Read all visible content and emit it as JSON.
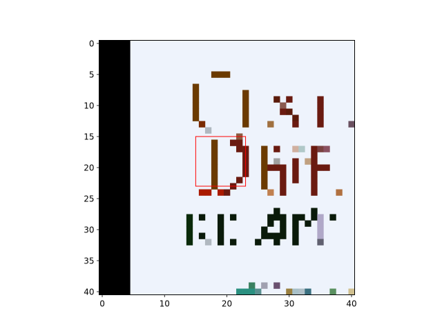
{
  "chart_data": {
    "type": "heatmap",
    "title": "",
    "xlabel": "",
    "ylabel": "",
    "xlim": [
      -0.5,
      40.5
    ],
    "ylim": [
      40.5,
      -0.5
    ],
    "x_ticks": [
      0,
      10,
      20,
      30,
      40
    ],
    "y_ticks": [
      0,
      5,
      10,
      15,
      20,
      25,
      30,
      35,
      40
    ],
    "grid": false,
    "legend": "none",
    "image_size": [
      41,
      41
    ],
    "background_color": "#eef3fc",
    "pixels": [
      {
        "x": 18,
        "y": 5,
        "c": "#6b3a00"
      },
      {
        "x": 19,
        "y": 5,
        "c": "#6b3a00"
      },
      {
        "x": 20,
        "y": 5,
        "c": "#6b3a00"
      },
      {
        "x": 15,
        "y": 7,
        "c": "#6b3a00"
      },
      {
        "x": 15,
        "y": 8,
        "c": "#6b3a00"
      },
      {
        "x": 23,
        "y": 8,
        "c": "#6b3a00"
      },
      {
        "x": 15,
        "y": 9,
        "c": "#6b3a00"
      },
      {
        "x": 23,
        "y": 9,
        "c": "#6b3a00"
      },
      {
        "x": 28,
        "y": 9,
        "c": "#5a1a0a"
      },
      {
        "x": 30,
        "y": 9,
        "c": "#6a1a10"
      },
      {
        "x": 35,
        "y": 9,
        "c": "#6a1a10"
      },
      {
        "x": 15,
        "y": 10,
        "c": "#6b3a00"
      },
      {
        "x": 23,
        "y": 10,
        "c": "#6b3a00"
      },
      {
        "x": 29,
        "y": 10,
        "c": "#8a5a50"
      },
      {
        "x": 35,
        "y": 10,
        "c": "#6a1a10"
      },
      {
        "x": 15,
        "y": 11,
        "c": "#6b3a00"
      },
      {
        "x": 23,
        "y": 11,
        "c": "#6b3a00"
      },
      {
        "x": 29,
        "y": 11,
        "c": "#6a1a10"
      },
      {
        "x": 30,
        "y": 11,
        "c": "#5a1a0a"
      },
      {
        "x": 35,
        "y": 11,
        "c": "#6a1a10"
      },
      {
        "x": 15,
        "y": 12,
        "c": "#6b3a00"
      },
      {
        "x": 23,
        "y": 12,
        "c": "#6b3a00"
      },
      {
        "x": 31,
        "y": 12,
        "c": "#5a1a0a"
      },
      {
        "x": 35,
        "y": 12,
        "c": "#6a1a10"
      },
      {
        "x": 16,
        "y": 13,
        "c": "#7a2a00"
      },
      {
        "x": 23,
        "y": 13,
        "c": "#6b3a00"
      },
      {
        "x": 27,
        "y": 13,
        "c": "#a07040"
      },
      {
        "x": 31,
        "y": 13,
        "c": "#6a1a10"
      },
      {
        "x": 35,
        "y": 13,
        "c": "#6a1a10"
      },
      {
        "x": 40,
        "y": 13,
        "c": "#6a5060"
      },
      {
        "x": 17,
        "y": 14,
        "c": "#b0b8c0"
      },
      {
        "x": 22,
        "y": 15,
        "c": "#8a5a40"
      },
      {
        "x": 18,
        "y": 16,
        "c": "#6b3a00"
      },
      {
        "x": 21,
        "y": 16,
        "c": "#6a1a10"
      },
      {
        "x": 22,
        "y": 16,
        "c": "#6a1a10"
      },
      {
        "x": 18,
        "y": 17,
        "c": "#6b3a00"
      },
      {
        "x": 22,
        "y": 17,
        "c": "#6a1a10"
      },
      {
        "x": 23,
        "y": 17,
        "c": "#6a1a10"
      },
      {
        "x": 26,
        "y": 17,
        "c": "#6b3a00"
      },
      {
        "x": 28,
        "y": 17,
        "c": "#6a1a10"
      },
      {
        "x": 31,
        "y": 17,
        "c": "#d0b0a0"
      },
      {
        "x": 32,
        "y": 17,
        "c": "#b0c8c8"
      },
      {
        "x": 34,
        "y": 17,
        "c": "#6a1a10"
      },
      {
        "x": 35,
        "y": 17,
        "c": "#7a4040"
      },
      {
        "x": 36,
        "y": 17,
        "c": "#8a5060"
      },
      {
        "x": 18,
        "y": 18,
        "c": "#6b3a00"
      },
      {
        "x": 23,
        "y": 18,
        "c": "#6a1a10"
      },
      {
        "x": 26,
        "y": 18,
        "c": "#6b3a00"
      },
      {
        "x": 34,
        "y": 18,
        "c": "#6a1a10"
      },
      {
        "x": 18,
        "y": 19,
        "c": "#6b3a00"
      },
      {
        "x": 23,
        "y": 19,
        "c": "#6a1a10"
      },
      {
        "x": 26,
        "y": 19,
        "c": "#6b3a00"
      },
      {
        "x": 28,
        "y": 19,
        "c": "#a0a0a0"
      },
      {
        "x": 31,
        "y": 19,
        "c": "#6a1a10"
      },
      {
        "x": 33,
        "y": 19,
        "c": "#c0a080"
      },
      {
        "x": 34,
        "y": 19,
        "c": "#6a1a10"
      },
      {
        "x": 18,
        "y": 20,
        "c": "#6b3a00"
      },
      {
        "x": 23,
        "y": 20,
        "c": "#6a1a10"
      },
      {
        "x": 26,
        "y": 20,
        "c": "#6b3a00"
      },
      {
        "x": 27,
        "y": 20,
        "c": "#6a1a10"
      },
      {
        "x": 28,
        "y": 20,
        "c": "#6a1a10"
      },
      {
        "x": 29,
        "y": 20,
        "c": "#6a1a10"
      },
      {
        "x": 31,
        "y": 20,
        "c": "#6a1a10"
      },
      {
        "x": 34,
        "y": 20,
        "c": "#6a1a10"
      },
      {
        "x": 35,
        "y": 20,
        "c": "#6a1a10"
      },
      {
        "x": 36,
        "y": 20,
        "c": "#6a1a10"
      },
      {
        "x": 18,
        "y": 21,
        "c": "#6b3a00"
      },
      {
        "x": 23,
        "y": 21,
        "c": "#6a1a10"
      },
      {
        "x": 26,
        "y": 21,
        "c": "#6b3a00"
      },
      {
        "x": 29,
        "y": 21,
        "c": "#6a1a10"
      },
      {
        "x": 31,
        "y": 21,
        "c": "#6a1a10"
      },
      {
        "x": 34,
        "y": 21,
        "c": "#6a1a10"
      },
      {
        "x": 18,
        "y": 22,
        "c": "#6b3a00"
      },
      {
        "x": 22,
        "y": 22,
        "c": "#6a1a10"
      },
      {
        "x": 26,
        "y": 22,
        "c": "#6b3a00"
      },
      {
        "x": 29,
        "y": 22,
        "c": "#6a1a10"
      },
      {
        "x": 31,
        "y": 22,
        "c": "#6a1a10"
      },
      {
        "x": 34,
        "y": 22,
        "c": "#6a1a10"
      },
      {
        "x": 18,
        "y": 23,
        "c": "#6b3a00"
      },
      {
        "x": 21,
        "y": 23,
        "c": "#6a1a10"
      },
      {
        "x": 26,
        "y": 23,
        "c": "#6b3a00"
      },
      {
        "x": 29,
        "y": 23,
        "c": "#6a1a10"
      },
      {
        "x": 34,
        "y": 23,
        "c": "#6a1a10"
      },
      {
        "x": 16,
        "y": 24,
        "c": "#aa1a00"
      },
      {
        "x": 17,
        "y": 24,
        "c": "#aa1a00"
      },
      {
        "x": 19,
        "y": 24,
        "c": "#aa1a00"
      },
      {
        "x": 20,
        "y": 24,
        "c": "#6a1a10"
      },
      {
        "x": 27,
        "y": 24,
        "c": "#c08050"
      },
      {
        "x": 29,
        "y": 24,
        "c": "#6a1a10"
      },
      {
        "x": 34,
        "y": 24,
        "c": "#6a1a10"
      },
      {
        "x": 38,
        "y": 24,
        "c": "#b07040"
      },
      {
        "x": 28,
        "y": 27,
        "c": "#0a1a0a"
      },
      {
        "x": 34,
        "y": 27,
        "c": "#0a1a0a"
      },
      {
        "x": 14,
        "y": 28,
        "c": "#0a2a0a"
      },
      {
        "x": 16,
        "y": 28,
        "c": "#0a1a0a"
      },
      {
        "x": 19,
        "y": 28,
        "c": "#0a1a0a"
      },
      {
        "x": 21,
        "y": 28,
        "c": "#0a1a0a"
      },
      {
        "x": 27,
        "y": 28,
        "c": "#0a1a0a"
      },
      {
        "x": 28,
        "y": 28,
        "c": "#0a1a0a"
      },
      {
        "x": 29,
        "y": 28,
        "c": "#0a1a0a"
      },
      {
        "x": 31,
        "y": 28,
        "c": "#0a1a0a"
      },
      {
        "x": 32,
        "y": 28,
        "c": "#0a1a0a"
      },
      {
        "x": 34,
        "y": 28,
        "c": "#0a1a0a"
      },
      {
        "x": 35,
        "y": 28,
        "c": "#b0a8c8"
      },
      {
        "x": 37,
        "y": 28,
        "c": "#0a1a0a"
      },
      {
        "x": 14,
        "y": 29,
        "c": "#0a2a0a"
      },
      {
        "x": 19,
        "y": 29,
        "c": "#0a1a0a"
      },
      {
        "x": 27,
        "y": 29,
        "c": "#0a1a0a"
      },
      {
        "x": 29,
        "y": 29,
        "c": "#0a1a0a"
      },
      {
        "x": 31,
        "y": 29,
        "c": "#0a1a0a"
      },
      {
        "x": 33,
        "y": 29,
        "c": "#0a1a0a"
      },
      {
        "x": 35,
        "y": 29,
        "c": "#b0a8c8"
      },
      {
        "x": 14,
        "y": 30,
        "c": "#0a2a0a"
      },
      {
        "x": 19,
        "y": 30,
        "c": "#0a1a0a"
      },
      {
        "x": 26,
        "y": 30,
        "c": "#0a1a0a"
      },
      {
        "x": 29,
        "y": 30,
        "c": "#0a1a0a"
      },
      {
        "x": 31,
        "y": 30,
        "c": "#0a1a0a"
      },
      {
        "x": 35,
        "y": 30,
        "c": "#b0a8c8"
      },
      {
        "x": 14,
        "y": 31,
        "c": "#0a2a0a"
      },
      {
        "x": 16,
        "y": 31,
        "c": "#0a1a0a"
      },
      {
        "x": 19,
        "y": 31,
        "c": "#0a1a0a"
      },
      {
        "x": 26,
        "y": 31,
        "c": "#0a1a0a"
      },
      {
        "x": 27,
        "y": 31,
        "c": "#0a1a0a"
      },
      {
        "x": 28,
        "y": 31,
        "c": "#0a1a0a"
      },
      {
        "x": 29,
        "y": 31,
        "c": "#0a1a0a"
      },
      {
        "x": 31,
        "y": 31,
        "c": "#0a1a0a"
      },
      {
        "x": 35,
        "y": 31,
        "c": "#b0a8c8"
      },
      {
        "x": 14,
        "y": 32,
        "c": "#0a2a0a"
      },
      {
        "x": 17,
        "y": 32,
        "c": "#b0b8c0"
      },
      {
        "x": 19,
        "y": 32,
        "c": "#0a1a0a"
      },
      {
        "x": 21,
        "y": 32,
        "c": "#0a1a0a"
      },
      {
        "x": 25,
        "y": 32,
        "c": "#0a1a0a"
      },
      {
        "x": 28,
        "y": 32,
        "c": "#0a1a0a"
      },
      {
        "x": 31,
        "y": 32,
        "c": "#0a1a0a"
      },
      {
        "x": 35,
        "y": 32,
        "c": "#606070"
      },
      {
        "x": 24,
        "y": 39,
        "c": "#3a8060"
      },
      {
        "x": 26,
        "y": 39,
        "c": "#a0a0b0"
      },
      {
        "x": 28,
        "y": 39,
        "c": "#6a5070"
      },
      {
        "x": 22,
        "y": 40,
        "c": "#2a9080"
      },
      {
        "x": 23,
        "y": 40,
        "c": "#2a9080"
      },
      {
        "x": 24,
        "y": 40,
        "c": "#2a9080"
      },
      {
        "x": 25,
        "y": 40,
        "c": "#5a9090"
      },
      {
        "x": 30,
        "y": 40,
        "c": "#9a8040"
      },
      {
        "x": 31,
        "y": 40,
        "c": "#a8c0c8"
      },
      {
        "x": 32,
        "y": 40,
        "c": "#b0c0c8"
      },
      {
        "x": 33,
        "y": 40,
        "c": "#3a7080"
      },
      {
        "x": 37,
        "y": 40,
        "c": "#5a9060"
      },
      {
        "x": 40,
        "y": 40,
        "c": "#d0c090"
      }
    ],
    "black_band": {
      "x_range": [
        0,
        4
      ],
      "color": "#000000"
    },
    "highlight_box": {
      "x_range": [
        15,
        23
      ],
      "y_range": [
        15,
        23
      ],
      "color": "#ff0000"
    }
  }
}
